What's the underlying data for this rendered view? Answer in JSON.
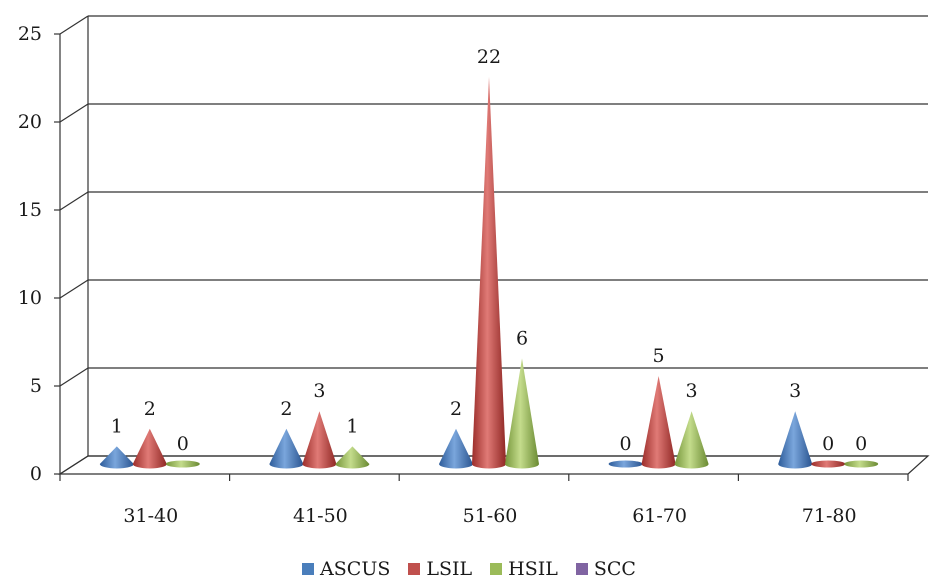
{
  "chart_data": {
    "type": "bar",
    "categories": [
      "31-40",
      "41-50",
      "51-60",
      "61-70",
      "71-80"
    ],
    "series": [
      {
        "name": "ASCUS",
        "values": [
          1,
          2,
          2,
          0,
          3
        ],
        "color": "#4a7ebb"
      },
      {
        "name": "LSIL",
        "values": [
          2,
          3,
          22,
          5,
          0
        ],
        "color": "#c0504d"
      },
      {
        "name": "HSIL",
        "values": [
          0,
          1,
          6,
          3,
          0
        ],
        "color": "#9bbb59"
      },
      {
        "name": "SCC",
        "values": [
          0,
          0,
          0,
          0,
          0
        ],
        "color": "#8064a2"
      }
    ],
    "data_labels": [
      [
        "1",
        "2",
        "0"
      ],
      [
        "2",
        "3",
        "1"
      ],
      [
        "2",
        "22",
        "6"
      ],
      [
        "0",
        "5",
        "3"
      ],
      [
        "3",
        "0",
        "0"
      ]
    ],
    "y_ticks": [
      "0",
      "5",
      "10",
      "15",
      "20",
      "25"
    ],
    "ylim": [
      0,
      25
    ],
    "grid": true,
    "legend_position": "bottom",
    "title": "",
    "xlabel": "",
    "ylabel": ""
  }
}
